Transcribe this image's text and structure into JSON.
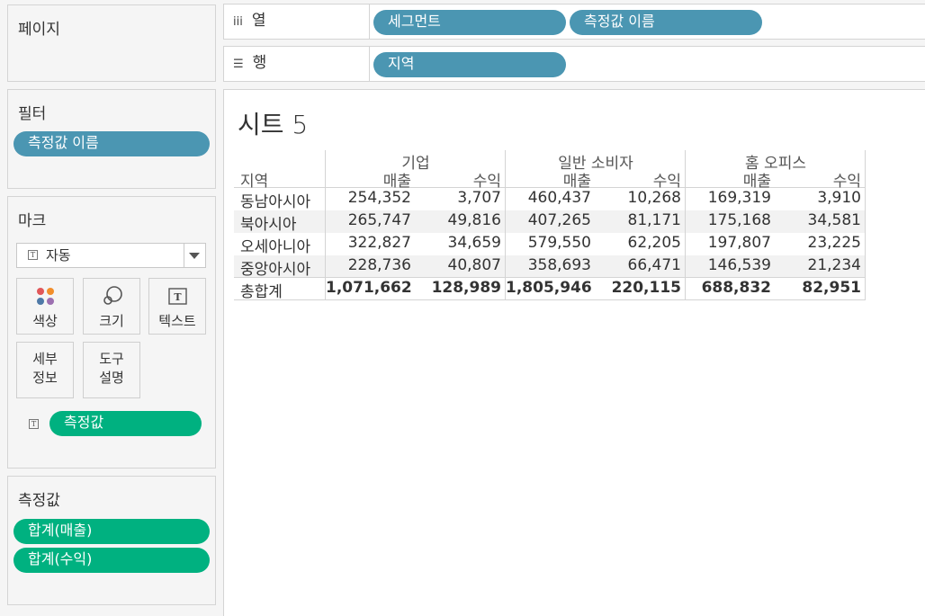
{
  "panels": {
    "pages": {
      "title": "페이지"
    },
    "filters": {
      "title": "필터",
      "pills": [
        "측정값 이름"
      ]
    },
    "marks": {
      "title": "마크",
      "mark_type": "자동",
      "buttons": {
        "color": "색상",
        "size": "크기",
        "text": "텍스트",
        "detail": "세부\n정보",
        "tooltip": "도구\n설명"
      },
      "text_pill": "측정값"
    },
    "measure_values": {
      "title": "측정값",
      "pills": [
        "합계(매출)",
        "합계(수익)"
      ]
    }
  },
  "shelves": {
    "columns": {
      "label": "열",
      "pills": [
        "세그먼트",
        "측정값 이름"
      ]
    },
    "rows": {
      "label": "행",
      "pills": [
        "지역"
      ]
    }
  },
  "colors": {
    "blue_pill": "#4b96b2",
    "green_pill": "#00b180"
  },
  "sheet": {
    "title": "시트 5",
    "row_header": "지역",
    "segments": [
      "기업",
      "일반 소비자",
      "홈 오피스"
    ],
    "measures": [
      "매출",
      "수익"
    ],
    "rows": [
      {
        "region": "동남아시아",
        "values": [
          "254,352",
          "3,707",
          "460,437",
          "10,268",
          "169,319",
          "3,910"
        ]
      },
      {
        "region": "북아시아",
        "values": [
          "265,747",
          "49,816",
          "407,265",
          "81,171",
          "175,168",
          "34,581"
        ]
      },
      {
        "region": "오세아니아",
        "values": [
          "322,827",
          "34,659",
          "579,550",
          "62,205",
          "197,807",
          "23,225"
        ]
      },
      {
        "region": "중앙아시아",
        "values": [
          "228,736",
          "40,807",
          "358,693",
          "66,471",
          "146,539",
          "21,234"
        ]
      }
    ],
    "total": {
      "label": "총합계",
      "values": [
        "1,071,662",
        "128,989",
        "1,805,946",
        "220,115",
        "688,832",
        "82,951"
      ]
    }
  }
}
